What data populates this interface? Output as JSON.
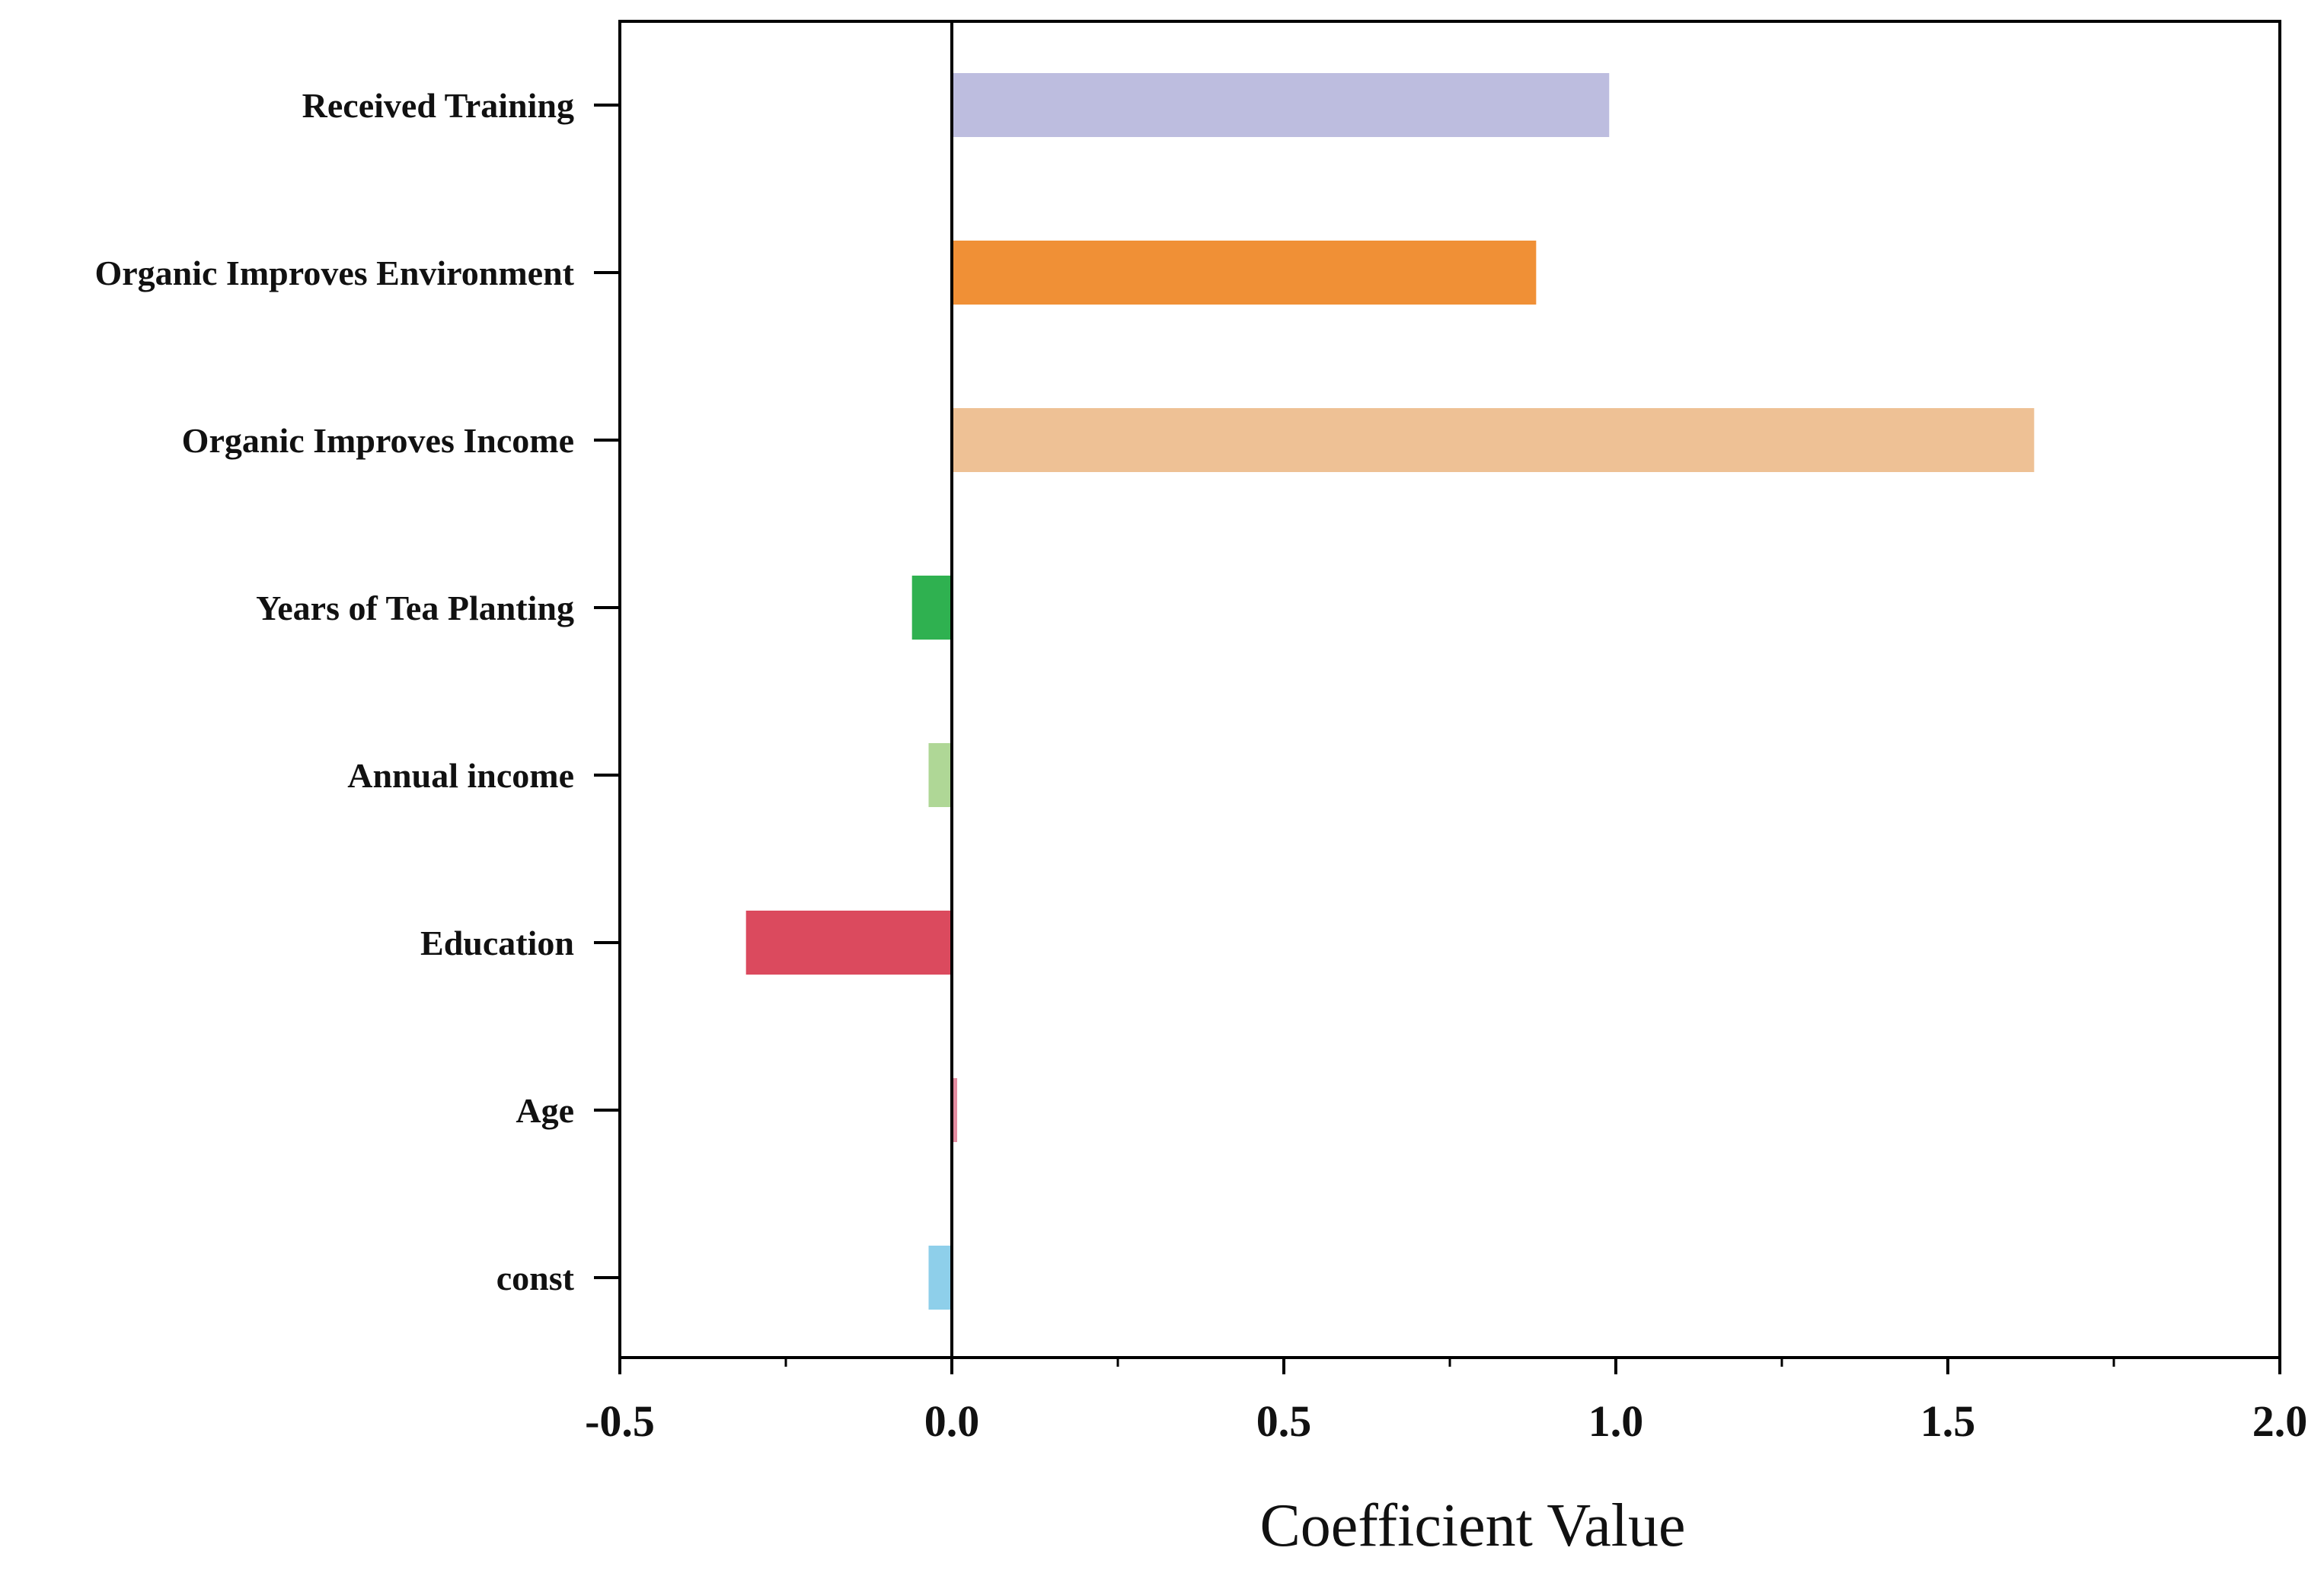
{
  "chart_data": {
    "type": "bar",
    "orientation": "horizontal",
    "title": "",
    "xlabel": "Coefficient Value",
    "ylabel": "",
    "xlim": [
      -0.5,
      2.0
    ],
    "x_ticks": [
      "-0.5",
      "0.0",
      "0.5",
      "1.0",
      "1.5",
      "2.0"
    ],
    "grid": false,
    "categories": [
      "Received Training",
      "Organic Improves Environment",
      "Organic Improves Income",
      "Years of Tea Planting",
      "Annual income",
      "Education",
      "Age",
      "const"
    ],
    "values": [
      0.99,
      0.88,
      1.63,
      -0.06,
      -0.035,
      -0.31,
      0.008,
      -0.035
    ],
    "colors": [
      "#BDBDDF",
      "#F09036",
      "#EEC195",
      "#2FB150",
      "#AFD796",
      "#DB4A5E",
      "#E38CA0",
      "#8ECFEA"
    ]
  }
}
